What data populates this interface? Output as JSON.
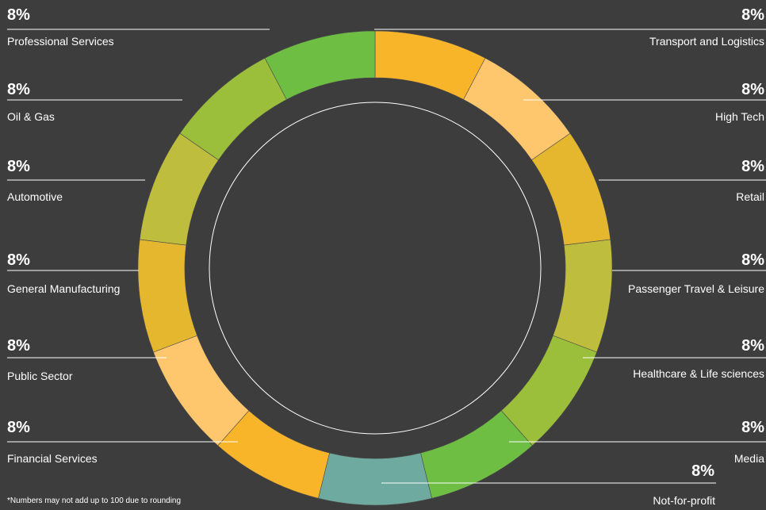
{
  "chart_data": {
    "type": "pie",
    "style": "donut",
    "slices": [
      {
        "label": "Transport and Logistics",
        "value_label": "8%",
        "value": 8,
        "color": "#f9b52a",
        "side": "right"
      },
      {
        "label": "High Tech",
        "value_label": "8%",
        "value": 8,
        "color": "#fec76e",
        "side": "right"
      },
      {
        "label": "Retail",
        "value_label": "8%",
        "value": 8,
        "color": "#e4b72e",
        "side": "right"
      },
      {
        "label": "Passenger Travel & Leisure",
        "value_label": "8%",
        "value": 8,
        "color": "#bebd3d",
        "side": "right"
      },
      {
        "label": "Healthcare & Life sciences",
        "value_label": "8%",
        "value": 8,
        "color": "#9cbf3b",
        "side": "right"
      },
      {
        "label": "Media",
        "value_label": "8%",
        "value": 8,
        "color": "#6fbe44",
        "side": "right"
      },
      {
        "label": "Not-for-profit",
        "value_label": "8%",
        "value": 8,
        "color": "#6eaa9f",
        "side": "bottom"
      },
      {
        "label": "Financial Services",
        "value_label": "8%",
        "value": 8,
        "color": "#f9b52a",
        "side": "left"
      },
      {
        "label": "Public Sector",
        "value_label": "8%",
        "value": 8,
        "color": "#fec76e",
        "side": "left"
      },
      {
        "label": "General Manufacturing",
        "value_label": "8%",
        "value": 8,
        "color": "#e4b72e",
        "side": "left"
      },
      {
        "label": "Automotive",
        "value_label": "8%",
        "value": 8,
        "color": "#bebd3d",
        "side": "left"
      },
      {
        "label": "Oil & Gas",
        "value_label": "8%",
        "value": 8,
        "color": "#9cbf3b",
        "side": "left"
      },
      {
        "label": "Professional Services",
        "value_label": "8%",
        "value": 8,
        "color": "#6fbe44",
        "side": "left"
      }
    ],
    "footnote": "*Numbers may not add up to 100 due to rounding"
  }
}
